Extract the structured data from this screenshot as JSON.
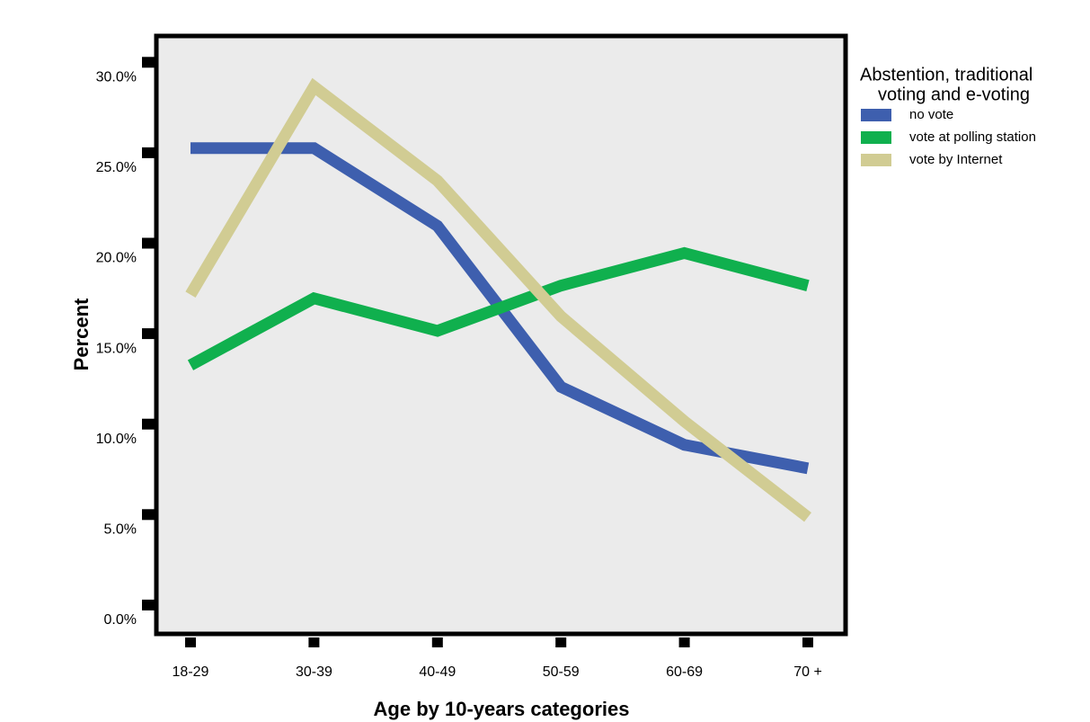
{
  "chart_data": {
    "type": "line",
    "x_label": "Age by 10-years categories",
    "y_label": "Percent",
    "legend_title": [
      "Abstention, traditional",
      "voting and e-voting"
    ],
    "categories": [
      "18-29",
      "30-39",
      "40-49",
      "50-59",
      "60-69",
      "70 +"
    ],
    "series": [
      {
        "name": "no vote",
        "color": "#3e5fae",
        "values": [
          26.1,
          26.1,
          21.8,
          12.9,
          9.7,
          8.4
        ]
      },
      {
        "name": "vote at polling station",
        "color": "#10b04e",
        "values": [
          14.1,
          17.8,
          16.0,
          18.5,
          20.3,
          18.5
        ]
      },
      {
        "name": "vote by Internet",
        "color": "#d1cc93",
        "values": [
          18.0,
          29.5,
          24.3,
          16.8,
          11.0,
          5.7
        ]
      }
    ],
    "ylim": [
      -0.85,
      32.4
    ],
    "yticks": [
      {
        "value": 0,
        "label": "0.0%"
      },
      {
        "value": 5,
        "label": "5.0%"
      },
      {
        "value": 10,
        "label": "10.0%"
      },
      {
        "value": 15,
        "label": "15.0%"
      },
      {
        "value": 20,
        "label": "20.0%"
      },
      {
        "value": 25,
        "label": "25.0%"
      },
      {
        "value": 30,
        "label": "30.0%"
      }
    ],
    "grid": false
  }
}
